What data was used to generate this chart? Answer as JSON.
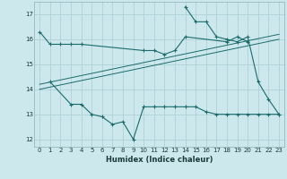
{
  "xlabel": "Humidex (Indice chaleur)",
  "bg_color": "#cce8ec",
  "grid_color": "#aaccd4",
  "line_color": "#1a6b6b",
  "x_all": [
    0,
    1,
    2,
    3,
    4,
    5,
    6,
    7,
    8,
    9,
    10,
    11,
    12,
    13,
    14,
    15,
    16,
    17,
    18,
    19,
    20,
    21,
    22,
    23
  ],
  "series1": [
    16.3,
    15.8,
    15.8,
    15.8,
    15.8,
    null,
    null,
    null,
    null,
    null,
    15.55,
    15.55,
    15.4,
    15.55,
    16.1,
    null,
    null,
    null,
    15.9,
    16.1,
    15.9,
    null,
    null,
    null
  ],
  "series2": [
    null,
    14.3,
    null,
    13.4,
    13.4,
    13.0,
    12.9,
    12.6,
    12.7,
    12.0,
    13.3,
    13.3,
    13.3,
    13.3,
    13.3,
    13.3,
    13.1,
    13.0,
    13.0,
    13.0,
    13.0,
    13.0,
    13.0,
    13.0
  ],
  "series3": [
    null,
    null,
    null,
    null,
    null,
    null,
    null,
    null,
    null,
    null,
    null,
    null,
    null,
    null,
    17.3,
    16.7,
    16.7,
    16.1,
    16.0,
    15.9,
    16.1,
    14.3,
    13.6,
    13.0
  ],
  "line1_y_start": 14.0,
  "line1_y_end": 16.0,
  "line2_y_start": 14.2,
  "line2_y_end": 16.2,
  "ylim_min": 11.7,
  "ylim_max": 17.5,
  "xlim_min": -0.5,
  "xlim_max": 23.5,
  "yticks": [
    12,
    13,
    14,
    15,
    16,
    17
  ],
  "xticks": [
    0,
    1,
    2,
    3,
    4,
    5,
    6,
    7,
    8,
    9,
    10,
    11,
    12,
    13,
    14,
    15,
    16,
    17,
    18,
    19,
    20,
    21,
    22,
    23
  ]
}
